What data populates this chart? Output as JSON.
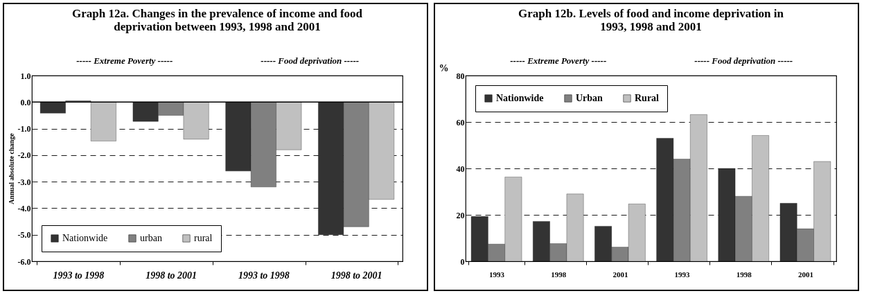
{
  "chart_data": [
    {
      "type": "bar",
      "title": "Graph 12a. Changes in the prevalence of income and food deprivation between 1993, 1998 and 2001",
      "ylabel": "Annual absolute change",
      "categories": [
        "1993 to 1998",
        "1998 to 2001",
        "1993 to 1998",
        "1998 to 2001"
      ],
      "series": [
        {
          "name": "Nationwide",
          "color": "#333333",
          "values": [
            -0.42,
            -0.73,
            -2.6,
            -5.0
          ]
        },
        {
          "name": "urban",
          "color": "#808080",
          "values": [
            0.05,
            -0.5,
            -3.2,
            -4.7
          ]
        },
        {
          "name": "rural",
          "color": "#c0c0c0",
          "values": [
            -1.47,
            -1.4,
            -1.8,
            -3.67
          ]
        }
      ],
      "ylim": [
        -6,
        1
      ],
      "yticks": [
        {
          "value": -6,
          "label": "-6.0"
        },
        {
          "value": -5,
          "label": "-5.0"
        },
        {
          "value": -4,
          "label": "-4.0"
        },
        {
          "value": -3,
          "label": "-3.0"
        },
        {
          "value": -2,
          "label": "-2.0"
        },
        {
          "value": -1,
          "label": "-1.0"
        },
        {
          "value": 0,
          "label": "0.0"
        },
        {
          "value": 1,
          "label": "1.0"
        }
      ],
      "ref_lines": [
        {
          "axis": "y",
          "value": 0,
          "color": "#000000"
        }
      ],
      "annotations": [
        "----- Extreme Poverty -----",
        "----- Food deprivation -----"
      ],
      "grid": "y",
      "legend": "bottom left"
    },
    {
      "type": "bar",
      "title": "Graph 12b. Levels of food and income deprivation in 1993, 1998 and 2001",
      "ylabel": "%",
      "categories": [
        "1993",
        "1998",
        "2001",
        "1993",
        "1998",
        "2001"
      ],
      "series": [
        {
          "name": "Nationwide",
          "color": "#333333",
          "values": [
            19.3,
            17.2,
            15.1,
            53,
            40,
            25
          ]
        },
        {
          "name": "Urban",
          "color": "#808080",
          "values": [
            7.4,
            7.6,
            6.1,
            44,
            28,
            14
          ]
        },
        {
          "name": "Rural",
          "color": "#c0c0c0",
          "values": [
            36.3,
            29,
            24.7,
            63.2,
            54.2,
            43
          ]
        }
      ],
      "ylim": [
        0,
        80
      ],
      "yticks": [
        0,
        20,
        40,
        60,
        80
      ],
      "annotations": [
        "----- Extreme Poverty -----",
        "----- Food deprivation -----"
      ],
      "grid": "y",
      "legend": "top left"
    }
  ]
}
